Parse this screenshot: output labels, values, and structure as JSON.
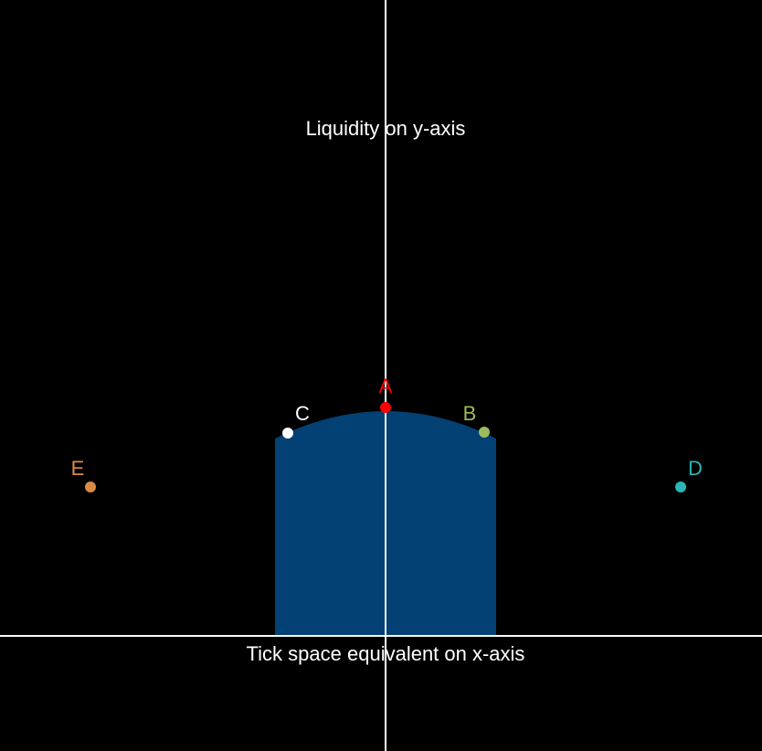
{
  "axes": {
    "y_title": "Liquidity on y-axis",
    "x_title": "Tick space equivalent on x-axis",
    "axis_color": "#ffffff"
  },
  "region": {
    "color": "#034074"
  },
  "points": [
    {
      "id": "A",
      "label": "A",
      "color": "#ff0000"
    },
    {
      "id": "B",
      "label": "B",
      "color": "#9cbb5c"
    },
    {
      "id": "C",
      "label": "C",
      "color": "#ffffff"
    },
    {
      "id": "D",
      "label": "D",
      "color": "#2cb5b5"
    },
    {
      "id": "E",
      "label": "E",
      "color": "#d98b45"
    }
  ]
}
